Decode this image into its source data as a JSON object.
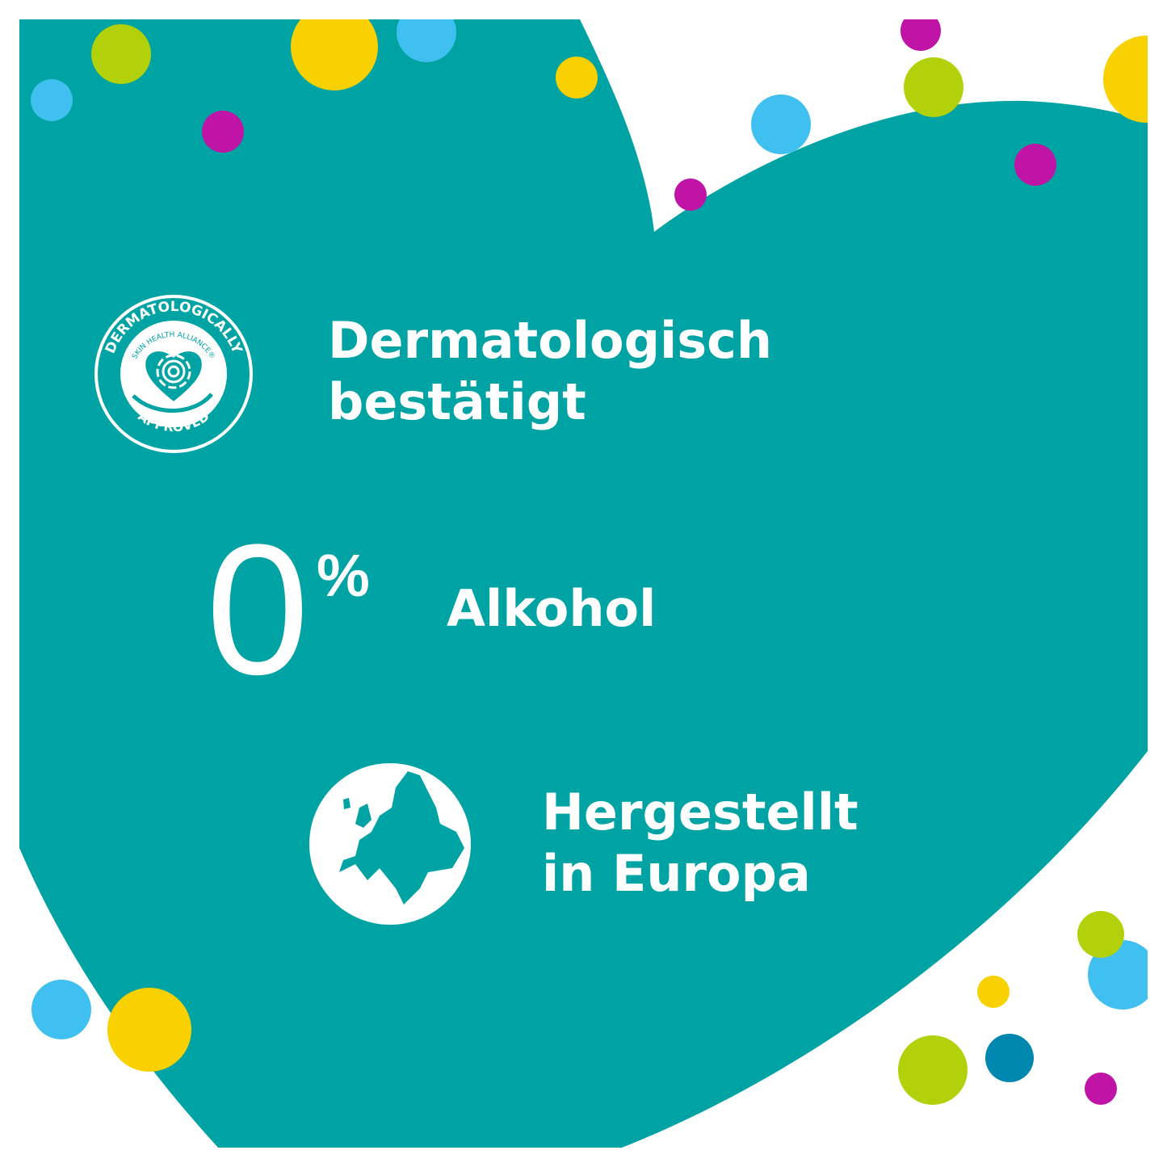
{
  "colors": {
    "teal": "#00A3A3",
    "yellow": "#F9D000",
    "green": "#B2D10A",
    "blue": "#3FC0F0",
    "magenta": "#C014A6",
    "darkblue": "#0087B0"
  },
  "seal": {
    "top_text": "DERMATOLOGICALLY",
    "inner_text": "SKIN HEALTH ALLIANCE®",
    "bottom_text": "APPROVED",
    "icon": "fingerprint-heart-in-hand-icon"
  },
  "features": [
    {
      "line1": "Dermatologisch",
      "line2": "bestätigt"
    },
    {
      "value": "0",
      "unit": "%",
      "label": "Alkohol"
    },
    {
      "line1": "Hergestellt",
      "line2": "in Europa",
      "icon": "europe-map-icon"
    }
  ]
}
